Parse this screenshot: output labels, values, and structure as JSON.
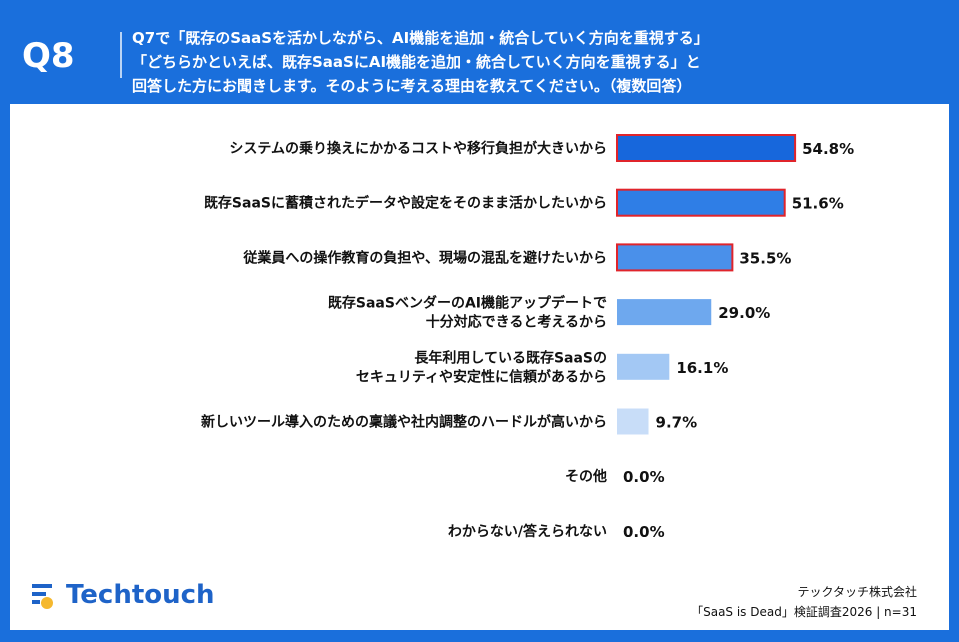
{
  "header": {
    "qnum": "Q8",
    "lines": [
      "Q7で「既存のSaaSを活かしながら、AI機能を追加・統合していく方向を重視する」",
      "「どちらかといえば、既存SaaSにAI機能を追加・統合していく方向を重視する」と",
      "回答した方にお聞きします。そのように考える理由を教えてください。（複数回答）"
    ]
  },
  "chart_data": {
    "type": "bar",
    "orientation": "horizontal",
    "categories": [
      [
        "システムの乗り換えにかかるコストや移行負担が大きいから"
      ],
      [
        "既存SaaSに蓄積されたデータや設定をそのまま活かしたいから"
      ],
      [
        "従業員への操作教育の負担や、現場の混乱を避けたいから"
      ],
      [
        "既存SaaSベンダーのAI機能アップデートで",
        "十分対応できると考えるから"
      ],
      [
        "長年利用している既存SaaSの",
        "セキュリティや安定性に信頼があるから"
      ],
      [
        "新しいツール導入のための稟議や社内調整のハードルが高いから"
      ],
      [
        "その他"
      ],
      [
        "わからない/答えられない"
      ]
    ],
    "values": [
      54.8,
      51.6,
      35.5,
      29.0,
      16.1,
      9.7,
      0.0,
      0.0
    ],
    "value_labels": [
      "54.8%",
      "51.6%",
      "35.5%",
      "29.0%",
      "16.1%",
      "9.7%",
      "0.0%",
      "0.0%"
    ],
    "highlighted": [
      true,
      true,
      true,
      false,
      false,
      false,
      false,
      false
    ],
    "colors": [
      "#1767dc",
      "#2f7ee6",
      "#4a90ea",
      "#6ea8ee",
      "#a3c8f4",
      "#c8ddf8",
      "#dbe8fa",
      "#dbe8fa"
    ],
    "highlight_color": "#e0242b",
    "unit": "%"
  },
  "footer": {
    "logo": "Techtouch",
    "company": "テックタッチ株式会社",
    "source": "「SaaS is Dead」検証調査2026 | n=31"
  }
}
